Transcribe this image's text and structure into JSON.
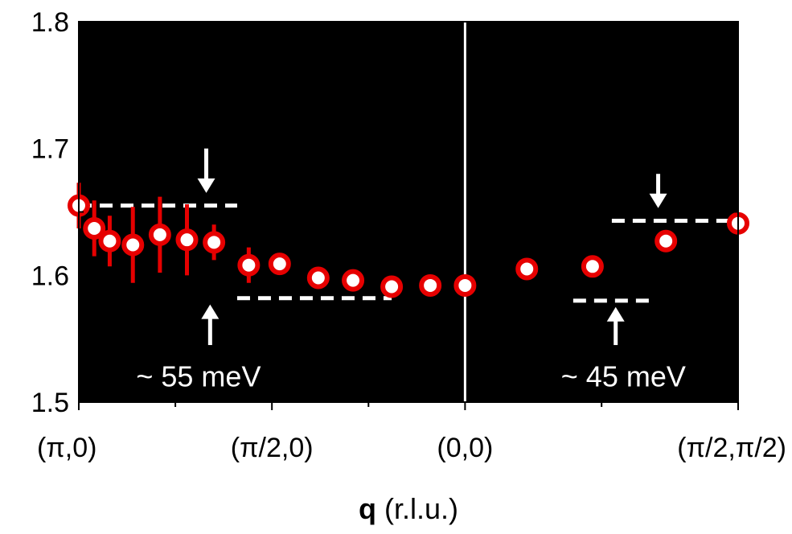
{
  "chart_data": {
    "type": "heatmap",
    "title": "",
    "xlabel_bold": "q",
    "xlabel_rest": " (r.l.u.)",
    "ylabel": "",
    "ylim": [
      1.5,
      1.8
    ],
    "yticks": [
      "1.5",
      "1.6",
      "1.7",
      "1.8"
    ],
    "xticks": [
      {
        "label": "(π,0)",
        "pos": 0
      },
      {
        "label": "(π/2,0)",
        "pos": 0.5
      },
      {
        "label": "(0,0)",
        "pos": 1.0
      },
      {
        "label": "(π/2,π/2)",
        "pos": 1.707
      }
    ],
    "xlim": [
      0,
      1.707
    ],
    "grid": false,
    "colors": {
      "background": "#000000",
      "band_low": "#0a3a78",
      "band_mid": "#1e90ff",
      "band_high": "#f5f57a",
      "points_fill": "#ffffff",
      "points_edge": "#e60000",
      "dashes": "#ffffff"
    },
    "series": [
      {
        "x": [
          0.0,
          0.04,
          0.08,
          0.14,
          0.21,
          0.28,
          0.35,
          0.44,
          0.52,
          0.62,
          0.71,
          0.81,
          0.91,
          1.0,
          1.16,
          1.33,
          1.52,
          1.707
        ],
        "y": [
          1.655,
          1.637,
          1.627,
          1.624,
          1.632,
          1.628,
          1.626,
          1.608,
          1.609,
          1.598,
          1.596,
          1.591,
          1.592,
          1.592,
          1.605,
          1.607,
          1.627,
          1.641
        ],
        "err": [
          0.018,
          0.022,
          0.02,
          0.03,
          0.03,
          0.028,
          0.014,
          0.014,
          0,
          0,
          0,
          0,
          0,
          0,
          0,
          0,
          0,
          0
        ]
      }
    ],
    "annotations": [
      {
        "text": "~ 55 meV",
        "data_x": 0.31,
        "data_y": 1.52
      },
      {
        "text": "~ 45 meV",
        "data_x": 1.41,
        "data_y": 1.52
      }
    ],
    "guides": [
      {
        "kind": "dash",
        "x1": 0.0,
        "x2": 0.41,
        "y": 1.655
      },
      {
        "kind": "dash",
        "x1": 0.41,
        "x2": 0.81,
        "y": 1.582
      },
      {
        "kind": "dash",
        "x1": 1.28,
        "x2": 1.48,
        "y": 1.58
      },
      {
        "kind": "dash",
        "x1": 1.38,
        "x2": 1.707,
        "y": 1.643
      },
      {
        "kind": "arrow-down",
        "x": 0.33,
        "y_from": 1.7,
        "y_to": 1.665
      },
      {
        "kind": "arrow-up",
        "x": 0.34,
        "y_from": 1.545,
        "y_to": 1.577
      },
      {
        "kind": "arrow-down",
        "x": 1.5,
        "y_from": 1.68,
        "y_to": 1.653
      },
      {
        "kind": "arrow-up",
        "x": 1.39,
        "y_from": 1.545,
        "y_to": 1.575
      },
      {
        "kind": "vline",
        "x": 1.0
      }
    ]
  }
}
